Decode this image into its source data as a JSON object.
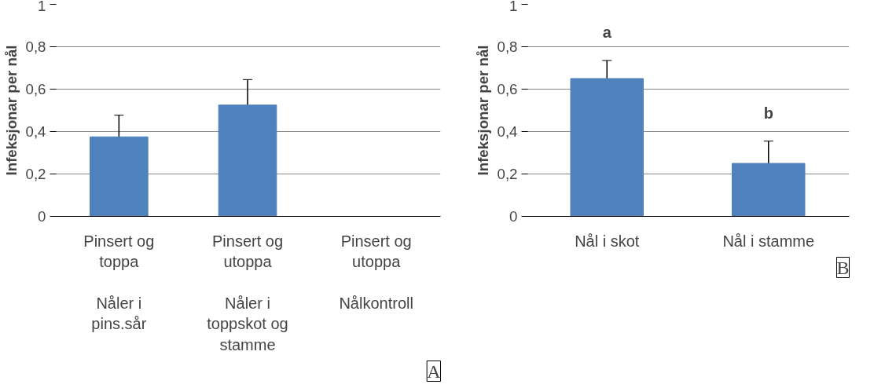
{
  "chart_data": [
    {
      "type": "bar",
      "ylabel": "Infeksjonar per nål",
      "categories": [
        "Pinsert og\ntoppa\n\nNåler i\npins.sår",
        "Pinsert og\nutoppa\n\nNåler i\ntoppskot og\nstamme",
        "Pinsert og\nutoppa\n\nNålkontroll"
      ],
      "values": [
        0.375,
        0.525,
        0
      ],
      "errors": [
        0.102,
        0.12,
        null
      ],
      "color": "#4f81bd",
      "ylim": [
        0,
        1
      ],
      "yticks": [
        0,
        {
          "value": 0.2,
          "label": "0,2"
        },
        {
          "value": 0.4,
          "label": "0,4"
        },
        {
          "value": 0.6,
          "label": "0,6"
        },
        {
          "value": 0.8,
          "label": "0,8"
        },
        1
      ],
      "grid": "y",
      "annotations": [
        "A"
      ]
    },
    {
      "type": "bar",
      "ylabel": "Infeksjonar per nål",
      "categories": [
        "Nål i skot",
        "Nål i stamme"
      ],
      "values": [
        0.65,
        0.25
      ],
      "errors": [
        0.085,
        0.105
      ],
      "color": "#4f81bd",
      "ylim": [
        0,
        1
      ],
      "yticks": [
        0,
        {
          "value": 0.2,
          "label": "0,2"
        },
        {
          "value": 0.4,
          "label": "0,4"
        },
        {
          "value": 0.6,
          "label": "0,6"
        },
        {
          "value": 0.8,
          "label": "0,8"
        },
        1
      ],
      "grid": "y",
      "annotations": [
        "a",
        "b",
        "B"
      ]
    }
  ]
}
